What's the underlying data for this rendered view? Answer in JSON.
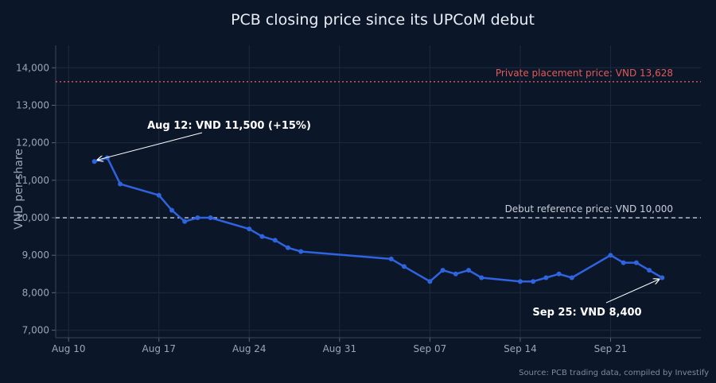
{
  "chart_data": {
    "type": "line",
    "title": "PCB closing price since its UPCoM debut",
    "ylabel": "VND per share",
    "xlabel": "",
    "ylim": [
      6800,
      14600
    ],
    "xlim": [
      "2025-08-09",
      "2025-09-28"
    ],
    "y_ticks": [
      7000,
      8000,
      9000,
      10000,
      11000,
      12000,
      13000,
      14000
    ],
    "y_tick_labels": [
      "7,000",
      "8,000",
      "9,000",
      "10,000",
      "11,000",
      "12,000",
      "13,000",
      "14,000"
    ],
    "x_ticks": [
      "2025-08-10",
      "2025-08-17",
      "2025-08-24",
      "2025-08-31",
      "2025-09-07",
      "2025-09-14",
      "2025-09-21"
    ],
    "x_tick_labels": [
      "Aug 10",
      "Aug 17",
      "Aug 24",
      "Aug 31",
      "Sep 07",
      "Sep 14",
      "Sep 21"
    ],
    "grid": true,
    "series": [
      {
        "color": "#2f64e0",
        "x": [
          "2025-08-12",
          "2025-08-13",
          "2025-08-14",
          "2025-08-17",
          "2025-08-18",
          "2025-08-19",
          "2025-08-20",
          "2025-08-21",
          "2025-08-24",
          "2025-08-25",
          "2025-08-26",
          "2025-08-27",
          "2025-08-28",
          "2025-09-04",
          "2025-09-05",
          "2025-09-07",
          "2025-09-08",
          "2025-09-09",
          "2025-09-10",
          "2025-09-11",
          "2025-09-14",
          "2025-09-15",
          "2025-09-16",
          "2025-09-17",
          "2025-09-18",
          "2025-09-21",
          "2025-09-22",
          "2025-09-23",
          "2025-09-24",
          "2025-09-25"
        ],
        "values": [
          11500,
          11600,
          10900,
          10600,
          10200,
          9900,
          10000,
          10000,
          9700,
          9500,
          9400,
          9200,
          9100,
          8900,
          8700,
          8300,
          8600,
          8500,
          8600,
          8400,
          8300,
          8300,
          8400,
          8500,
          8400,
          9000,
          8800,
          8800,
          8600,
          8400
        ]
      }
    ],
    "reference_lines": [
      {
        "label": "Private placement price: VND 13,628",
        "value": 13628,
        "color": "#e05a5a",
        "style": "dotted"
      },
      {
        "label": "Debut reference price: VND 10,000",
        "value": 10000,
        "color": "#c9ced8",
        "style": "dashed"
      }
    ],
    "annotations": [
      {
        "text": "Aug 12: VND 11,500 (+15%)",
        "x": "2025-08-12",
        "y": 11500
      },
      {
        "text": "Sep 25: VND 8,400",
        "x": "2025-09-25",
        "y": 8400
      }
    ],
    "source": "Source: PCB trading data, compiled by Investify"
  }
}
